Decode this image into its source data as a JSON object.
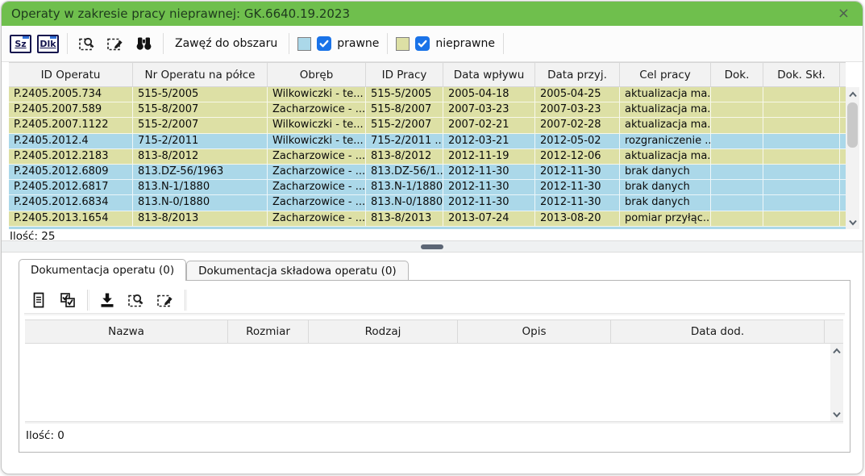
{
  "window": {
    "title": "Operaty w zakresie pracy nieprawnej: GK.6640.19.2023",
    "close_glyph": "×"
  },
  "colors": {
    "titlebar": "#6fbf4d",
    "prawne": "#abd8e9",
    "nieprawne": "#dde0a5",
    "checkbox": "#1a73e8"
  },
  "toolbar": {
    "sz_label": "Sz",
    "dlk_label": "Dlk",
    "zoom_area_label": "Zawęź do obszaru",
    "filters": [
      {
        "id": "prawne",
        "label": "prawne",
        "checked": true
      },
      {
        "id": "nieprawne",
        "label": "nieprawne",
        "checked": true
      }
    ],
    "icons": [
      "select-preview-icon",
      "select-edit-icon",
      "binoculars-icon"
    ]
  },
  "operaty_table": {
    "columns": [
      "ID Operatu",
      "Nr Operatu na półce",
      "Obręb",
      "ID Pracy",
      "Data wpływu",
      "Data przyj.",
      "Cel pracy",
      "Dok.",
      "Dok. Skł."
    ],
    "rows": [
      {
        "type": "nieprawne",
        "cells": [
          "P.2405.2005.734",
          "515-5/2005",
          "Wilkowiczki - te...",
          "515-5/2005",
          "2005-04-18",
          "2005-04-25",
          "aktualizacja ma...",
          "",
          ""
        ]
      },
      {
        "type": "nieprawne",
        "cells": [
          "P.2405.2007.589",
          "515-8/2007",
          "Zacharzowice - ...",
          "515-8/2007",
          "2007-03-23",
          "2007-03-23",
          "aktualizacja ma...",
          "",
          ""
        ]
      },
      {
        "type": "nieprawne",
        "cells": [
          "P.2405.2007.1122",
          "515-2/2007",
          "Wilkowiczki - te...",
          "515-2/2007",
          "2007-02-21",
          "2007-02-28",
          "aktualizacja ma...",
          "",
          ""
        ]
      },
      {
        "type": "prawne",
        "cells": [
          "P.2405.2012.4",
          "715-2/2011",
          "Wilkowiczki - te...",
          "715-2/2011 ...",
          "2012-03-21",
          "2012-05-02",
          "rozgraniczenie ...",
          "",
          ""
        ]
      },
      {
        "type": "nieprawne",
        "cells": [
          "P.2405.2012.2183",
          "813-8/2012",
          "Zacharzowice - ...",
          "813-8/2012",
          "2012-11-19",
          "2012-12-06",
          "aktualizacja ma...",
          "",
          ""
        ]
      },
      {
        "type": "prawne",
        "cells": [
          "P.2405.2012.6809",
          "813.DZ-56/1963",
          "Zacharzowice - ...",
          "813.DZ-56/1...",
          "2012-11-30",
          "2012-11-30",
          "brak danych",
          "",
          ""
        ]
      },
      {
        "type": "prawne",
        "cells": [
          "P.2405.2012.6817",
          "813.N-1/1880",
          "Zacharzowice - ...",
          "813.N-1/1880",
          "2012-11-30",
          "2012-11-30",
          "brak danych",
          "",
          ""
        ]
      },
      {
        "type": "prawne",
        "cells": [
          "P.2405.2012.6834",
          "813.N-0/1880",
          "Zacharzowice - ...",
          "813.N-0/1880",
          "2012-11-30",
          "2012-11-30",
          "brak danych",
          "",
          ""
        ]
      },
      {
        "type": "nieprawne",
        "cells": [
          "P.2405.2013.1654",
          "813-8/2013",
          "Zacharzowice - ...",
          "813-8/2013",
          "2013-07-24",
          "2013-08-20",
          "pomiar przyłąc...",
          "",
          ""
        ]
      }
    ],
    "count_label": "Ilość: 25"
  },
  "tabs": [
    {
      "label": "Dokumentacja operatu (0)",
      "active": true
    },
    {
      "label": "Dokumentacja składowa operatu (0)",
      "active": false
    }
  ],
  "docs_table": {
    "columns": [
      "Nazwa",
      "Rozmiar",
      "Rodzaj",
      "Opis",
      "Data dod."
    ],
    "rows": [],
    "count_label": "Ilość: 0"
  }
}
